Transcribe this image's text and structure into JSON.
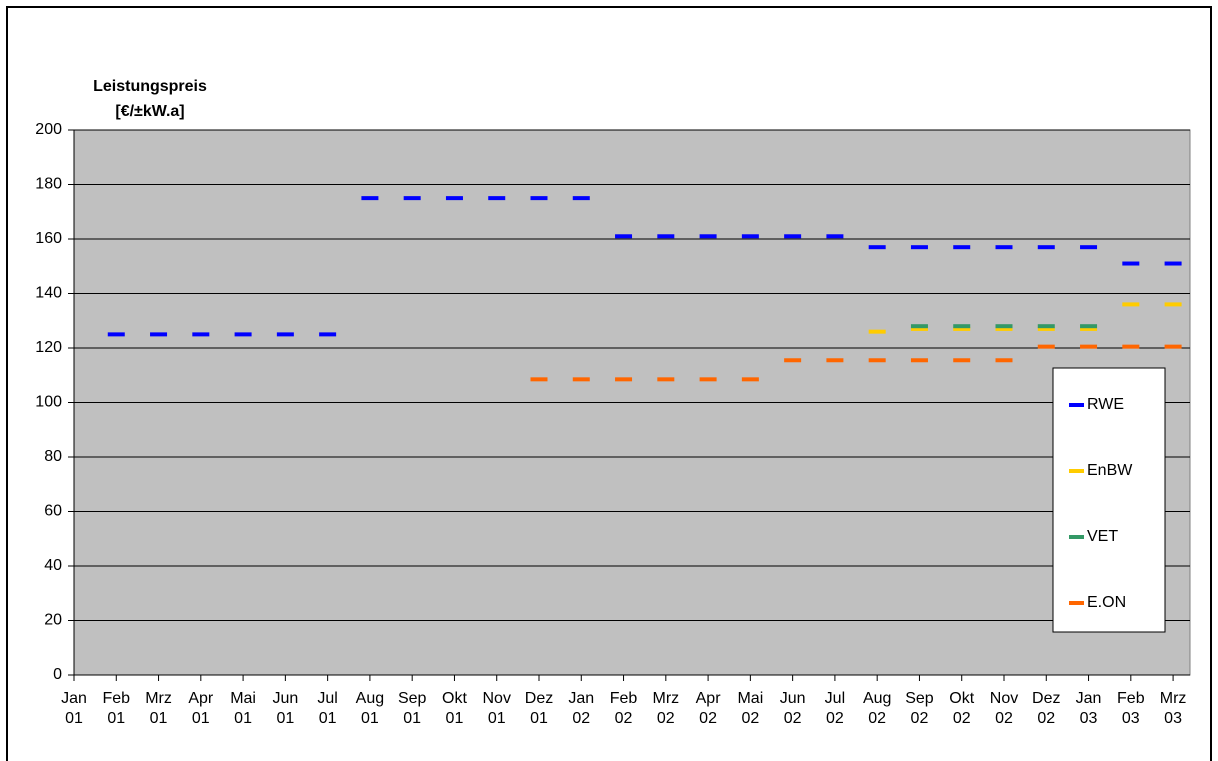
{
  "chart_data": {
    "type": "line",
    "y_label": "Leistungspreis [€/±kW.a]",
    "categories": [
      "Jan 01",
      "Feb 01",
      "Mrz 01",
      "Apr 01",
      "Mai 01",
      "Jun 01",
      "Jul 01",
      "Aug 01",
      "Sep 01",
      "Okt 01",
      "Nov 01",
      "Dez 01",
      "Jan 02",
      "Feb 02",
      "Mrz 02",
      "Apr 02",
      "Mai 02",
      "Jun 02",
      "Jul 02",
      "Aug 02",
      "Sep 02",
      "Okt 02",
      "Nov 02",
      "Dez 02",
      "Jan 03",
      "Feb 03",
      "Mrz 03"
    ],
    "series": [
      {
        "name": "RWE",
        "color": "#0000ff",
        "values": [
          null,
          125,
          125,
          125,
          125,
          125,
          125,
          175,
          175,
          175,
          175,
          175,
          175,
          161,
          161,
          161,
          161,
          161,
          161,
          157,
          157,
          157,
          157,
          157,
          157,
          151,
          151
        ]
      },
      {
        "name": "EnBW",
        "color": "#ffcc00",
        "values": [
          null,
          null,
          null,
          null,
          null,
          null,
          null,
          null,
          null,
          null,
          null,
          null,
          null,
          null,
          null,
          null,
          null,
          null,
          null,
          126,
          127,
          127,
          127,
          127,
          127,
          136,
          136
        ]
      },
      {
        "name": "VET",
        "color": "#339966",
        "values": [
          null,
          null,
          null,
          null,
          null,
          null,
          null,
          null,
          null,
          null,
          null,
          null,
          null,
          null,
          null,
          null,
          null,
          null,
          null,
          null,
          128,
          128,
          128,
          128,
          128,
          null,
          null
        ]
      },
      {
        "name": "E.ON",
        "color": "#ff6600",
        "values": [
          null,
          null,
          null,
          null,
          null,
          null,
          null,
          null,
          null,
          null,
          null,
          108.5,
          108.5,
          108.5,
          108.5,
          108.5,
          108.5,
          115.5,
          115.5,
          115.5,
          115.5,
          115.5,
          115.5,
          120.5,
          120.5,
          120.5,
          120.5
        ]
      }
    ],
    "ylim": [
      0,
      200
    ],
    "yticks": [
      0,
      20,
      40,
      60,
      80,
      100,
      120,
      140,
      160,
      180,
      200
    ],
    "grid": true,
    "plot_background": "#c0c0c0",
    "legend": "right"
  }
}
